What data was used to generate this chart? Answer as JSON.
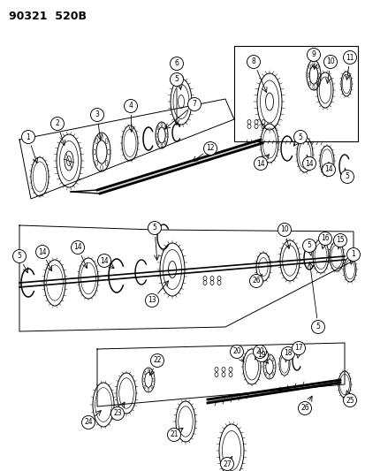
{
  "title": "90321  520B",
  "bg": "#ffffff",
  "lw": 0.7,
  "fig_w": 4.14,
  "fig_h": 5.33,
  "dpi": 100
}
